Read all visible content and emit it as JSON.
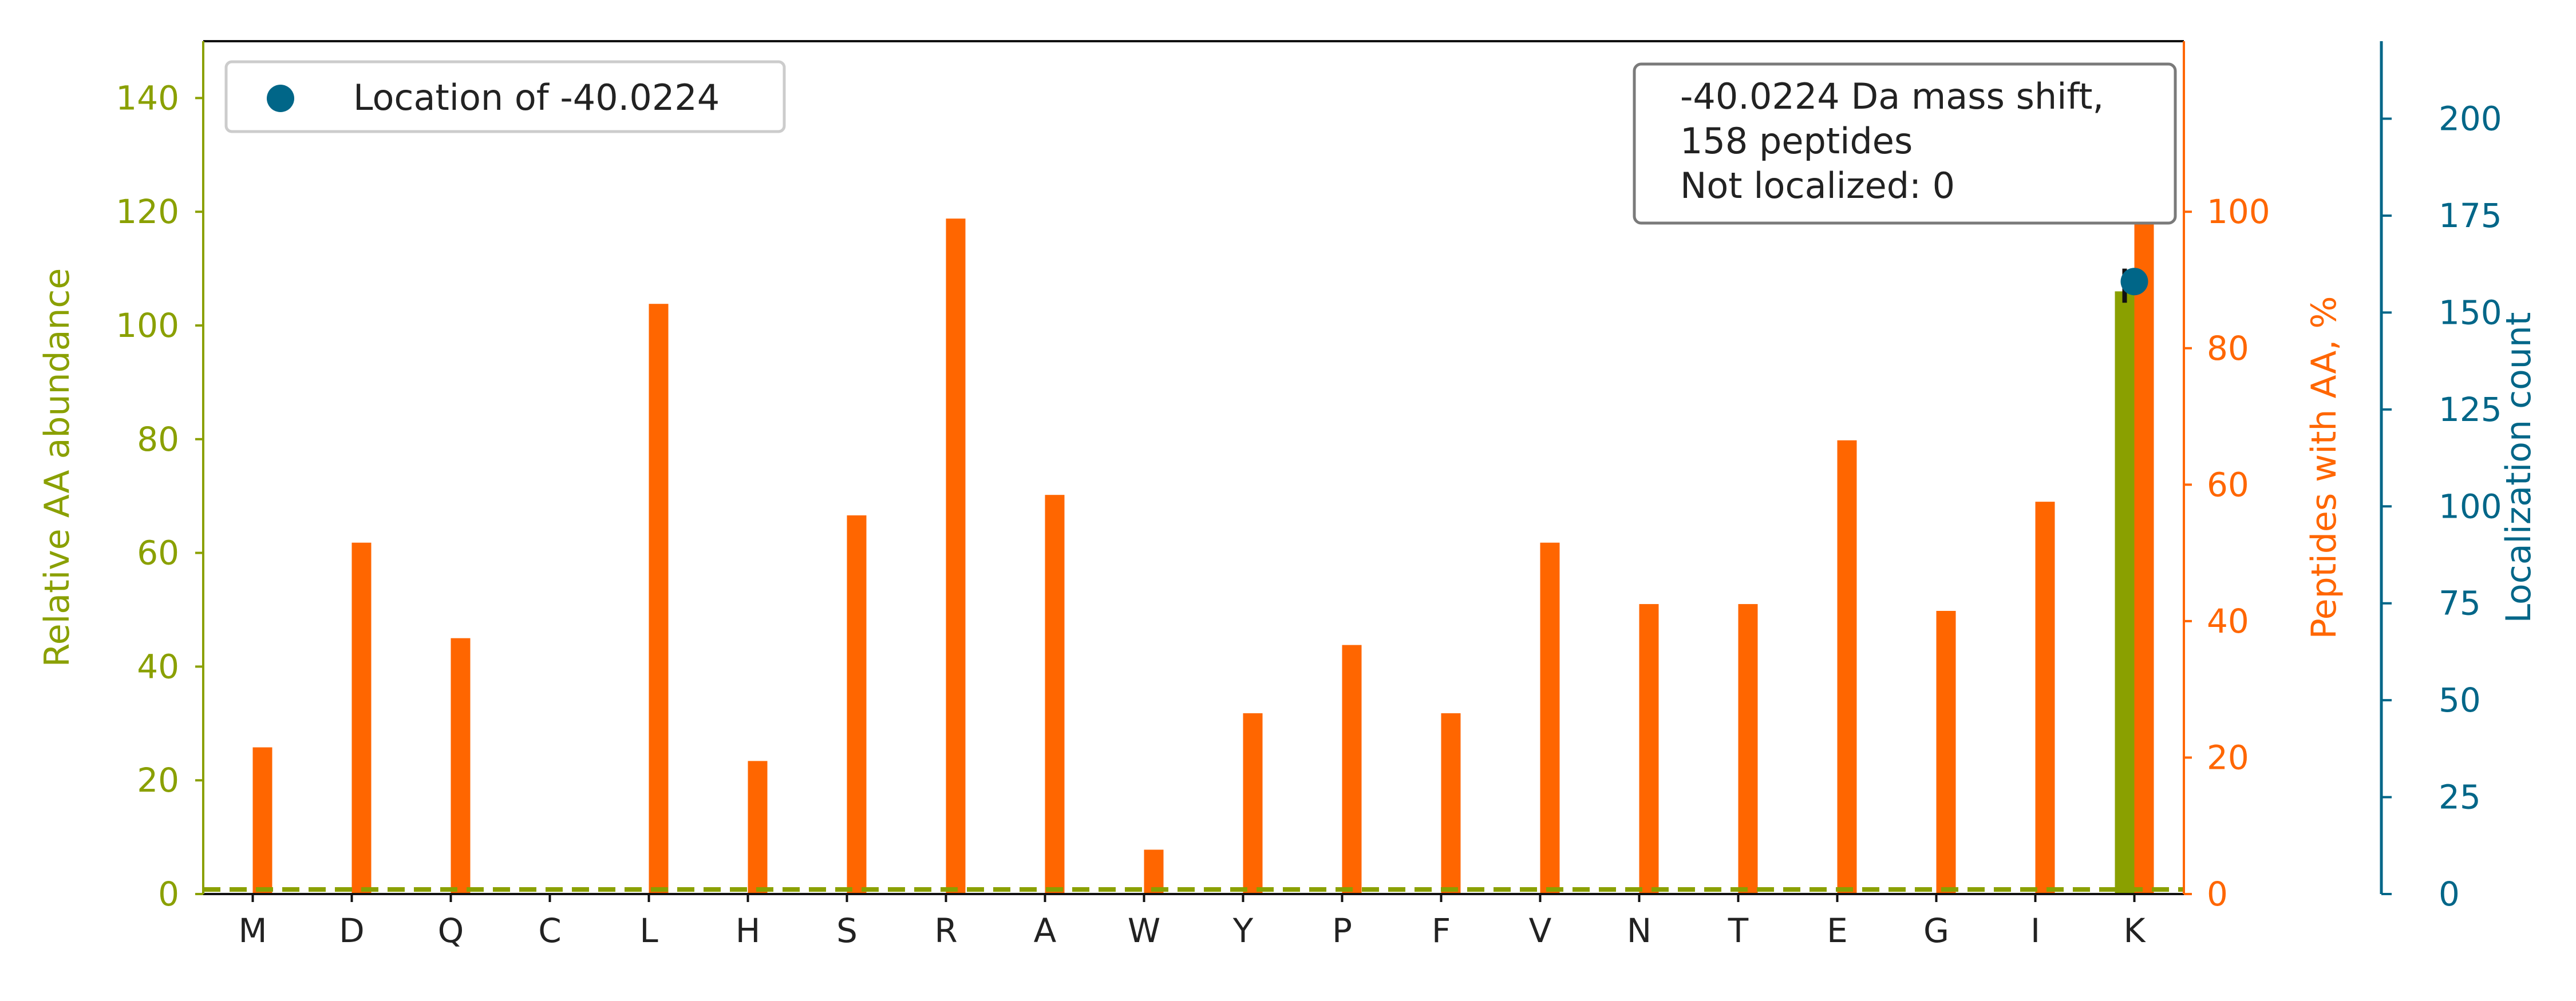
{
  "chart_data": {
    "type": "bar",
    "categories": [
      "M",
      "D",
      "Q",
      "C",
      "L",
      "H",
      "S",
      "R",
      "A",
      "W",
      "Y",
      "P",
      "F",
      "V",
      "N",
      "T",
      "E",
      "G",
      "I",
      "K"
    ],
    "left_axis": {
      "label": "Relative AA abundance",
      "ylim": [
        0,
        150
      ],
      "ticks": [
        0,
        20,
        40,
        60,
        80,
        100,
        120,
        140
      ],
      "color": "#8aa000"
    },
    "right_axis": {
      "label": "Peptides with AA, %",
      "ylim": [
        0,
        125
      ],
      "ticks": [
        0,
        20,
        40,
        60,
        80,
        100
      ],
      "color": "#ff6600"
    },
    "far_right_axis": {
      "label": "Localization count",
      "ylim": [
        0,
        220
      ],
      "ticks": [
        0,
        25,
        50,
        75,
        100,
        125,
        150,
        175,
        200
      ],
      "color": "#006688"
    },
    "series": [
      {
        "axis": "left",
        "color": "#8aa000",
        "values": [
          0,
          0,
          0,
          0,
          0,
          0,
          0,
          0,
          0,
          0,
          0,
          0,
          0,
          0,
          0,
          0,
          0,
          0,
          0,
          106
        ]
      },
      {
        "axis": "right",
        "color": "#ff6600",
        "values": [
          21.5,
          51.5,
          37.5,
          0,
          86.5,
          19.5,
          55.5,
          99,
          58.5,
          6.5,
          26.5,
          36.5,
          26.5,
          51.5,
          42.5,
          42.5,
          66.5,
          41.5,
          57.5,
          100
        ]
      },
      {
        "name": "Location of -40.0224",
        "axis": "far_right",
        "type": "scatter",
        "color": "#006688",
        "points": [
          {
            "x": "K",
            "y": 158
          }
        ]
      }
    ],
    "reference_line": {
      "axis": "left",
      "value": 1,
      "style": "dashed",
      "color": "#8aa000"
    },
    "error_bar": {
      "category": "K",
      "axis": "left",
      "low": 104,
      "high": 110
    },
    "legend": {
      "placement": "top-left",
      "entries": [
        "Location of -40.0224"
      ]
    },
    "annotation": {
      "placement": "top-right",
      "lines": [
        "-40.0224 Da mass shift,",
        "158 peptides",
        "Not localized: 0"
      ]
    },
    "grid": false
  }
}
